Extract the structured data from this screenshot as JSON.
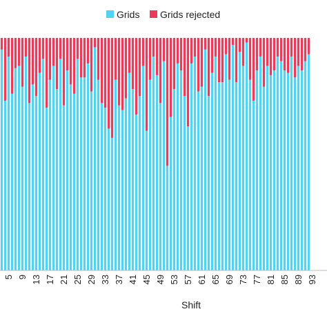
{
  "chart_data": {
    "type": "bar",
    "stacked": true,
    "normalized": true,
    "xlabel": "Shift",
    "ylabel": "",
    "title": "",
    "x_start": 1,
    "x_count": 92,
    "tick_labels": [
      "5",
      "9",
      "13",
      "17",
      "21",
      "25",
      "29",
      "33",
      "37",
      "41",
      "45",
      "49",
      "53",
      "57",
      "61",
      "65",
      "69",
      "73",
      "77",
      "81",
      "85",
      "89",
      "93"
    ],
    "ylim": [
      0,
      1
    ],
    "legend_position": "top-center",
    "series": [
      {
        "name": "Grids",
        "color": "#52d3f3",
        "values": [
          0.9,
          0.87,
          0.95,
          0.73,
          0.92,
          0.76,
          0.87,
          0.88,
          0.79,
          0.92,
          0.72,
          0.8,
          0.75,
          0.85,
          0.91,
          0.7,
          0.82,
          0.88,
          0.78,
          0.91,
          0.71,
          0.86,
          0.8,
          0.76,
          0.91,
          0.83,
          0.83,
          0.89,
          0.77,
          0.96,
          0.82,
          0.72,
          0.7,
          0.61,
          0.57,
          0.82,
          0.71,
          0.69,
          0.74,
          0.85,
          0.78,
          0.67,
          0.75,
          0.88,
          0.6,
          0.82,
          0.92,
          0.84,
          0.72,
          0.9,
          0.45,
          0.66,
          0.78,
          0.89,
          0.86,
          0.75,
          0.62,
          0.89,
          0.92,
          0.77,
          0.79,
          0.95,
          0.75,
          0.85,
          0.92,
          0.81,
          0.81,
          0.93,
          0.82,
          0.97,
          0.81,
          0.94,
          0.88,
          0.98,
          0.82,
          0.73,
          0.86,
          0.92,
          0.79,
          0.88,
          0.84,
          0.86,
          0.92,
          0.9,
          0.86,
          0.85,
          0.92,
          0.83,
          0.88,
          0.86,
          0.9,
          0.93
        ]
      },
      {
        "name": "Grids rejected",
        "color": "#ec3b5a",
        "values": [
          0.1,
          0.13,
          0.05,
          0.27,
          0.08,
          0.24,
          0.13,
          0.12,
          0.21,
          0.08,
          0.28,
          0.2,
          0.25,
          0.15,
          0.09,
          0.3,
          0.18,
          0.12,
          0.22,
          0.09,
          0.29,
          0.14,
          0.2,
          0.24,
          0.09,
          0.17,
          0.17,
          0.11,
          0.23,
          0.04,
          0.18,
          0.28,
          0.3,
          0.39,
          0.43,
          0.18,
          0.29,
          0.31,
          0.26,
          0.15,
          0.22,
          0.33,
          0.25,
          0.12,
          0.4,
          0.18,
          0.08,
          0.16,
          0.28,
          0.1,
          0.55,
          0.34,
          0.22,
          0.11,
          0.14,
          0.25,
          0.38,
          0.11,
          0.08,
          0.23,
          0.21,
          0.05,
          0.25,
          0.15,
          0.08,
          0.19,
          0.19,
          0.07,
          0.18,
          0.03,
          0.19,
          0.06,
          0.12,
          0.02,
          0.18,
          0.27,
          0.14,
          0.08,
          0.21,
          0.12,
          0.16,
          0.14,
          0.08,
          0.1,
          0.14,
          0.15,
          0.08,
          0.17,
          0.12,
          0.14,
          0.1,
          0.07
        ]
      }
    ]
  }
}
